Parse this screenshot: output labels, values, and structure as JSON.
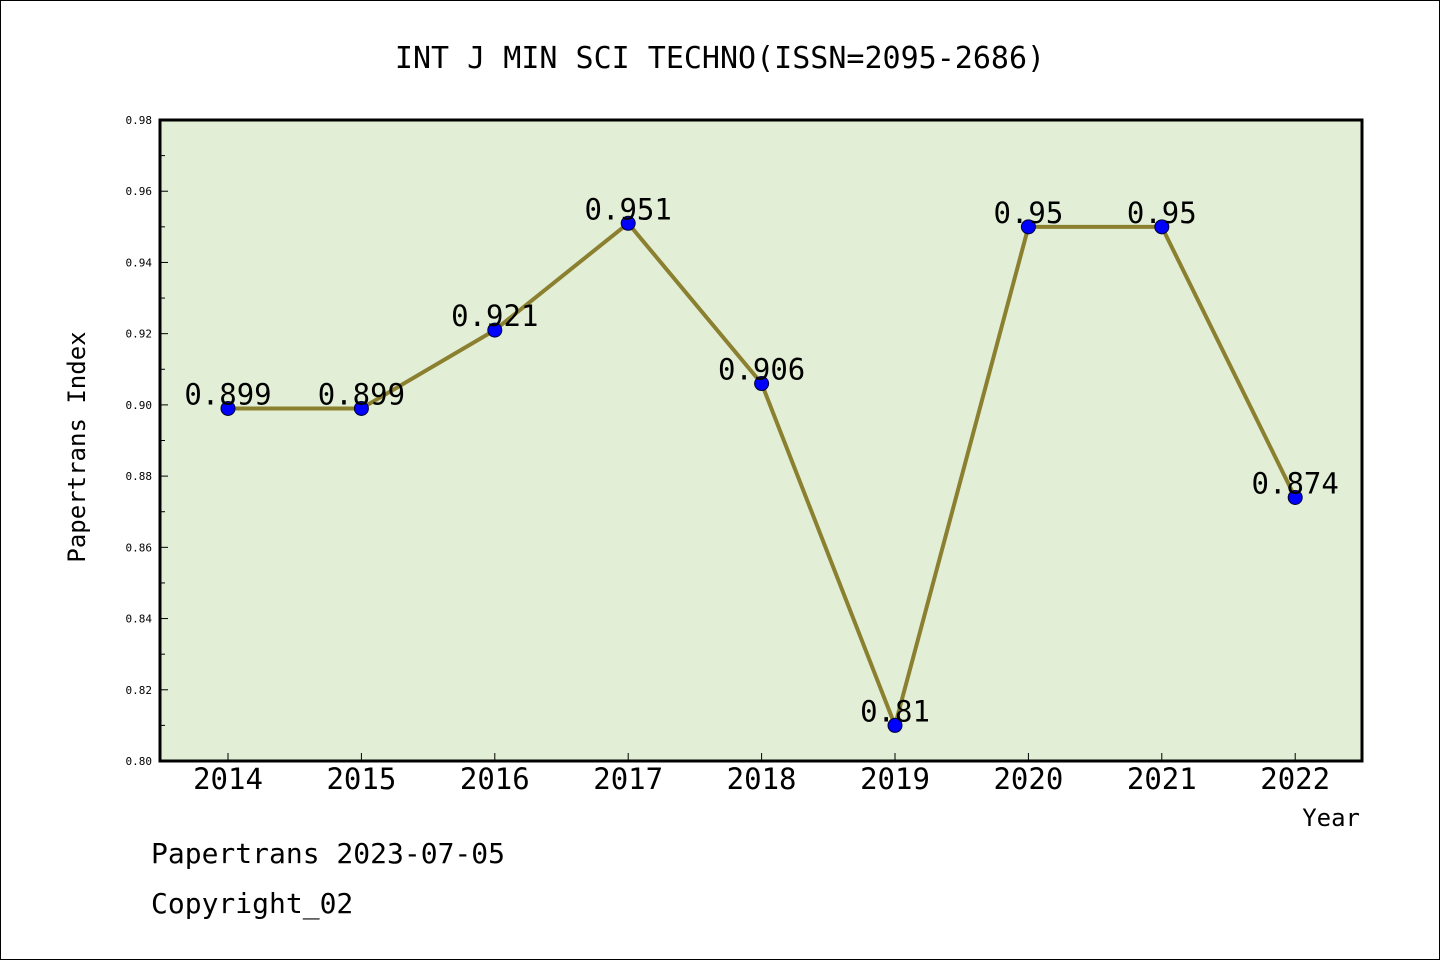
{
  "chart_data": {
    "type": "line",
    "title": "INT J MIN SCI TECHNO(ISSN=2095-2686)",
    "xlabel": "Year",
    "ylabel": "Papertrans Index",
    "categories": [
      "2014",
      "2015",
      "2016",
      "2017",
      "2018",
      "2019",
      "2020",
      "2021",
      "2022"
    ],
    "values": [
      0.899,
      0.899,
      0.921,
      0.951,
      0.906,
      0.81,
      0.95,
      0.95,
      0.874
    ],
    "data_labels": [
      "0.899",
      "0.899",
      "0.921",
      "0.951",
      "0.906",
      "0.81",
      "0.95",
      "0.95",
      "0.874"
    ],
    "ylim": [
      0.8,
      0.98
    ],
    "yticks": [
      "0.80",
      "0.82",
      "0.84",
      "0.86",
      "0.88",
      "0.90",
      "0.92",
      "0.94",
      "0.96",
      "0.98"
    ],
    "grid": false,
    "colors": {
      "plot_background": "#e2efd6",
      "line": "#8b8030",
      "marker": "#0000ff"
    }
  },
  "footer": {
    "source": "Papertrans 2023-07-05",
    "copyright": "Copyright_02"
  }
}
